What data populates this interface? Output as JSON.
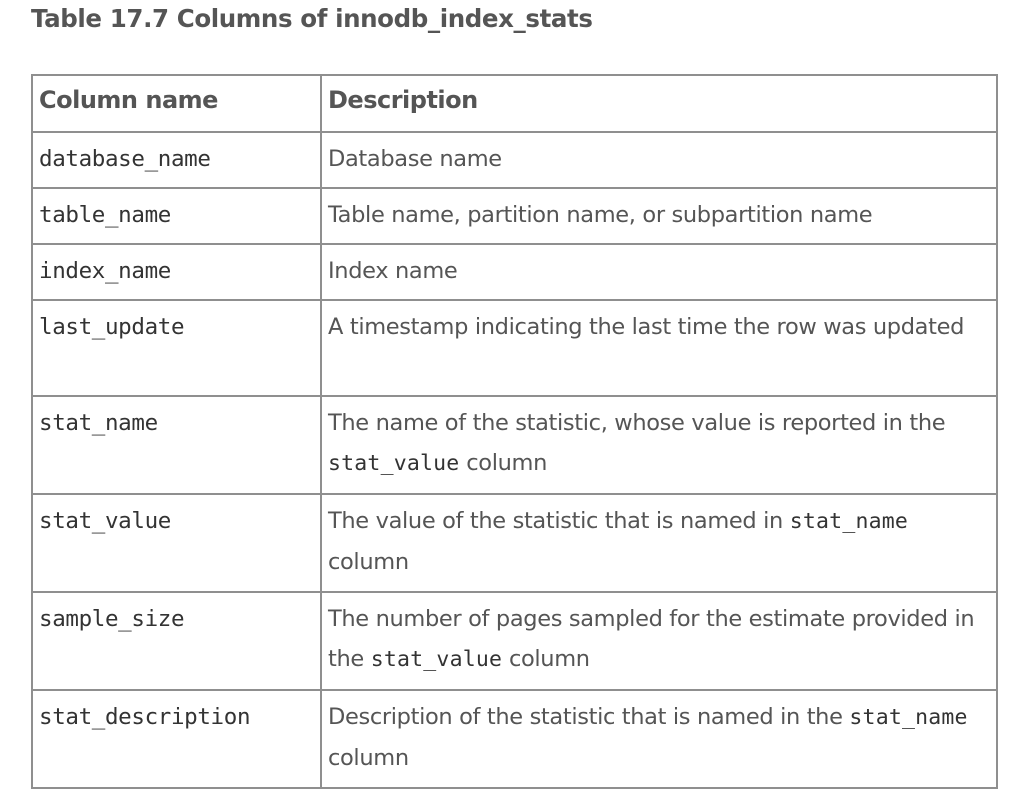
{
  "caption": "Table 17.7 Columns of innodb_index_stats",
  "headers": {
    "column_name": "Column name",
    "description": "Description"
  },
  "rows": [
    {
      "name": "database_name",
      "desc": "Database name"
    },
    {
      "name": "table_name",
      "desc": "Table name, partition name, or subpartition name"
    },
    {
      "name": "index_name",
      "desc": "Index name"
    },
    {
      "name": "last_update",
      "desc": "A timestamp indicating the last time the row was updated"
    },
    {
      "name": "stat_name",
      "desc_before": "The name of the statistic, whose value is reported in the",
      "desc_code": "stat_value",
      "desc_after": "column"
    },
    {
      "name": "stat_value",
      "desc_before": "The value of the statistic that is named in",
      "desc_code": "stat_name",
      "desc_after": "column"
    },
    {
      "name": "sample_size",
      "desc_before": "The number of pages sampled for the estimate provided in the",
      "desc_code": "stat_value",
      "desc_after": "column"
    },
    {
      "name": "stat_description",
      "desc_before": "Description of the statistic that is named in the",
      "desc_code": "stat_name",
      "desc_after": "column"
    }
  ]
}
